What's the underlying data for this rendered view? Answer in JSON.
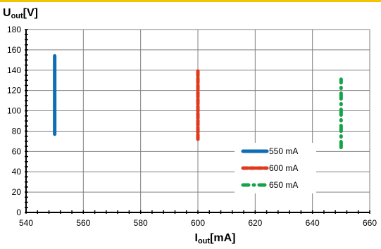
{
  "colors": {
    "top_bar": "#f5c400",
    "grid": "#808080",
    "series_550": "#0e6db3",
    "series_600": "#e03a1e",
    "series_650": "#15a34a"
  },
  "chart_data": {
    "type": "line",
    "ylabel": {
      "main": "U",
      "sub": "out",
      "unit": "[V]"
    },
    "xlabel": {
      "main": "I",
      "sub": "out",
      "unit": "[mA]"
    },
    "xlim": [
      540,
      660
    ],
    "ylim": [
      0,
      180
    ],
    "x_ticks": [
      "540",
      "560",
      "580",
      "600",
      "620",
      "640",
      "660"
    ],
    "y_ticks": [
      "0",
      "20",
      "40",
      "60",
      "80",
      "100",
      "120",
      "140",
      "160",
      "180"
    ],
    "grid": true,
    "legend_placement": "lower-right",
    "series": [
      {
        "name": "550 mA",
        "style": "solid",
        "x": [
          550,
          550
        ],
        "y": [
          77,
          154
        ]
      },
      {
        "name": "600 mA",
        "style": "dashed",
        "x": [
          600,
          600
        ],
        "y": [
          72,
          141
        ]
      },
      {
        "name": "650 mA",
        "style": "dash-dot",
        "x": [
          650,
          650
        ],
        "y": [
          64,
          131
        ]
      }
    ]
  }
}
